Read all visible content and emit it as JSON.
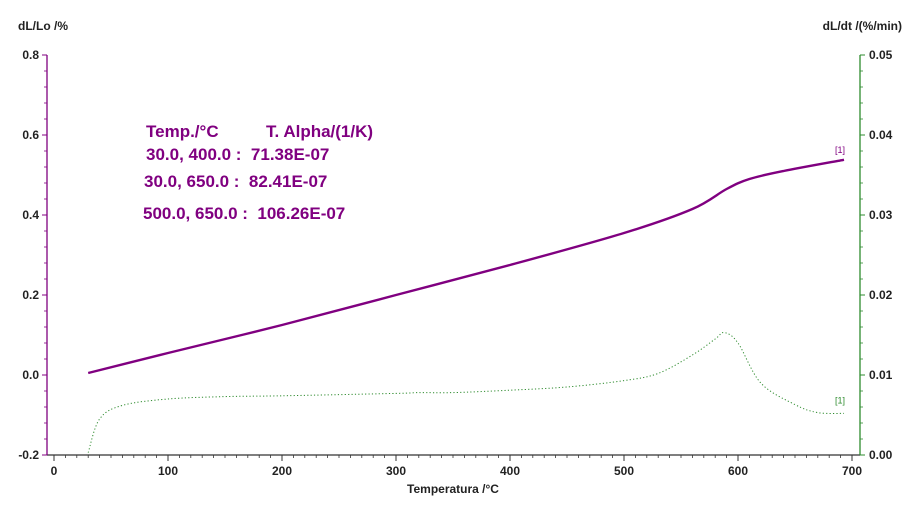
{
  "chart_data": {
    "type": "line",
    "title": "",
    "xlabel": "Temperatura /°C",
    "ylabel_left": "dL/Lo /%",
    "ylabel_right": "dL/dt /(%/min)",
    "xlim": [
      -3,
      700
    ],
    "ylim_left": [
      -0.2,
      0.8
    ],
    "ylim_right": [
      0.0,
      0.05
    ],
    "x_ticks": [
      0,
      100,
      200,
      300,
      400,
      500,
      600,
      700
    ],
    "y_left_ticks": [
      "-0.2",
      "0.0",
      "0.2",
      "0.4",
      "0.6",
      "0.8"
    ],
    "y_right_ticks": [
      "0.00",
      "0.01",
      "0.02",
      "0.03",
      "0.04",
      "0.05"
    ],
    "colors": {
      "expansion": "#800080",
      "rate": "#2e8b2e",
      "axis": "#333333"
    },
    "grid": false,
    "series": [
      {
        "axis": "left",
        "style": "solid",
        "label": "[1]",
        "x": [
          30,
          100,
          200,
          300,
          400,
          500,
          560,
          590,
          610,
          640,
          693
        ],
        "y": [
          0.005,
          0.055,
          0.125,
          0.2,
          0.275,
          0.355,
          0.415,
          0.465,
          0.49,
          0.51,
          0.538
        ]
      },
      {
        "axis": "right",
        "style": "dotted",
        "label": "[1]",
        "x": [
          30,
          40,
          60,
          100,
          150,
          200,
          300,
          320,
          350,
          400,
          450,
          500,
          530,
          560,
          580,
          588,
          600,
          620,
          650,
          670,
          693
        ],
        "y": [
          0.0003,
          0.0045,
          0.0062,
          0.007,
          0.0073,
          0.0074,
          0.0077,
          0.0078,
          0.0078,
          0.0081,
          0.0085,
          0.0093,
          0.0102,
          0.0125,
          0.0145,
          0.0153,
          0.014,
          0.009,
          0.0063,
          0.0053,
          0.0052
        ]
      }
    ],
    "annotation": {
      "header": [
        "Temp./°C",
        "T. Alpha/(1/K)"
      ],
      "rows": [
        "30.0, 400.0 :  71.38E-07",
        "30.0, 650.0 :  82.41E-07",
        "500.0, 650.0 :  106.26E-07"
      ]
    }
  }
}
